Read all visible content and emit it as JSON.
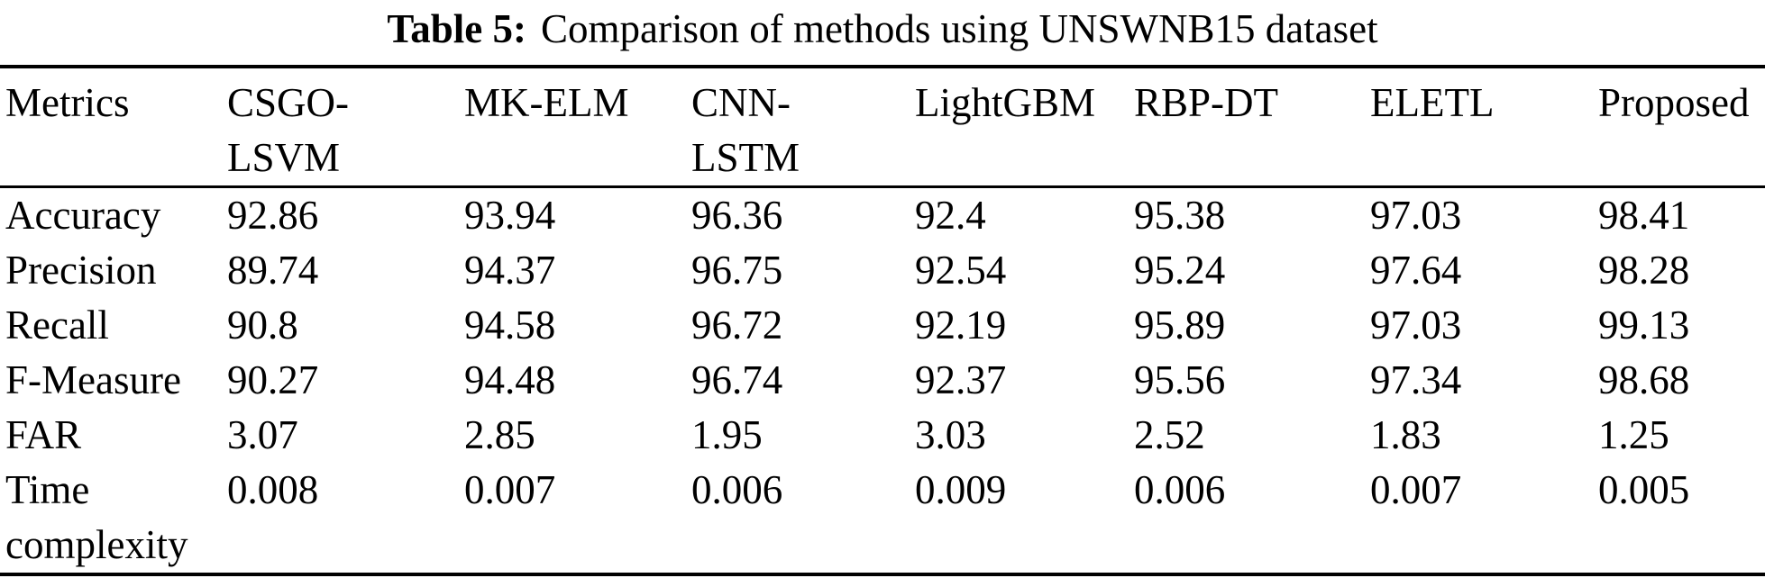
{
  "caption": {
    "label": "Table 5:",
    "text": "Comparison of methods using UNSWNB15 dataset"
  },
  "colors": {
    "text": "#000000",
    "background": "#ffffff",
    "rule": "#000000"
  },
  "chart_data": {
    "type": "table",
    "title": "Table 5: Comparison of methods using UNSWNB15 dataset",
    "columns": [
      "Metrics",
      "CSGO-LSVM",
      "MK-ELM",
      "CNN-LSTM",
      "LightGBM",
      "RBP-DT",
      "ELETL",
      "Proposed"
    ],
    "rows": [
      {
        "metric": "Accuracy",
        "values": [
          "92.86",
          "93.94",
          "96.36",
          "92.4",
          "95.38",
          "97.03",
          "98.41"
        ]
      },
      {
        "metric": "Precision",
        "values": [
          "89.74",
          "94.37",
          "96.75",
          "92.54",
          "95.24",
          "97.64",
          "98.28"
        ]
      },
      {
        "metric": "Recall",
        "values": [
          "90.8",
          "94.58",
          "96.72",
          "92.19",
          "95.89",
          "97.03",
          "99.13"
        ]
      },
      {
        "metric": "F-Measure",
        "values": [
          "90.27",
          "94.48",
          "96.74",
          "92.37",
          "95.56",
          "97.34",
          "98.68"
        ]
      },
      {
        "metric": "FAR",
        "values": [
          "3.07",
          "2.85",
          "1.95",
          "3.03",
          "2.52",
          "1.83",
          "1.25"
        ]
      },
      {
        "metric": "Time complexity",
        "values": [
          "0.008",
          "0.007",
          "0.006",
          "0.009",
          "0.006",
          "0.007",
          "0.005"
        ]
      }
    ]
  },
  "table": {
    "columns": [
      "Metrics",
      "CSGO-\nLSVM",
      "MK-ELM",
      "CNN-\nLSTM",
      "LightGBM",
      "RBP-DT",
      "ELETL",
      "Proposed"
    ],
    "rows": [
      {
        "metric": "Accuracy",
        "values": [
          "92.86",
          "93.94",
          "96.36",
          "92.4",
          "95.38",
          "97.03",
          "98.41"
        ]
      },
      {
        "metric": "Precision",
        "values": [
          "89.74",
          "94.37",
          "96.75",
          "92.54",
          "95.24",
          "97.64",
          "98.28"
        ]
      },
      {
        "metric": "Recall",
        "values": [
          "90.8",
          "94.58",
          "96.72",
          "92.19",
          "95.89",
          "97.03",
          "99.13"
        ]
      },
      {
        "metric": "F-Measure",
        "values": [
          "90.27",
          "94.48",
          "96.74",
          "92.37",
          "95.56",
          "97.34",
          "98.68"
        ]
      },
      {
        "metric": "FAR",
        "values": [
          "3.07",
          "2.85",
          "1.95",
          "3.03",
          "2.52",
          "1.83",
          "1.25"
        ]
      },
      {
        "metric": "Time complexity",
        "values": [
          "0.008",
          "0.007",
          "0.006",
          "0.009",
          "0.006",
          "0.007",
          "0.005"
        ]
      }
    ]
  }
}
